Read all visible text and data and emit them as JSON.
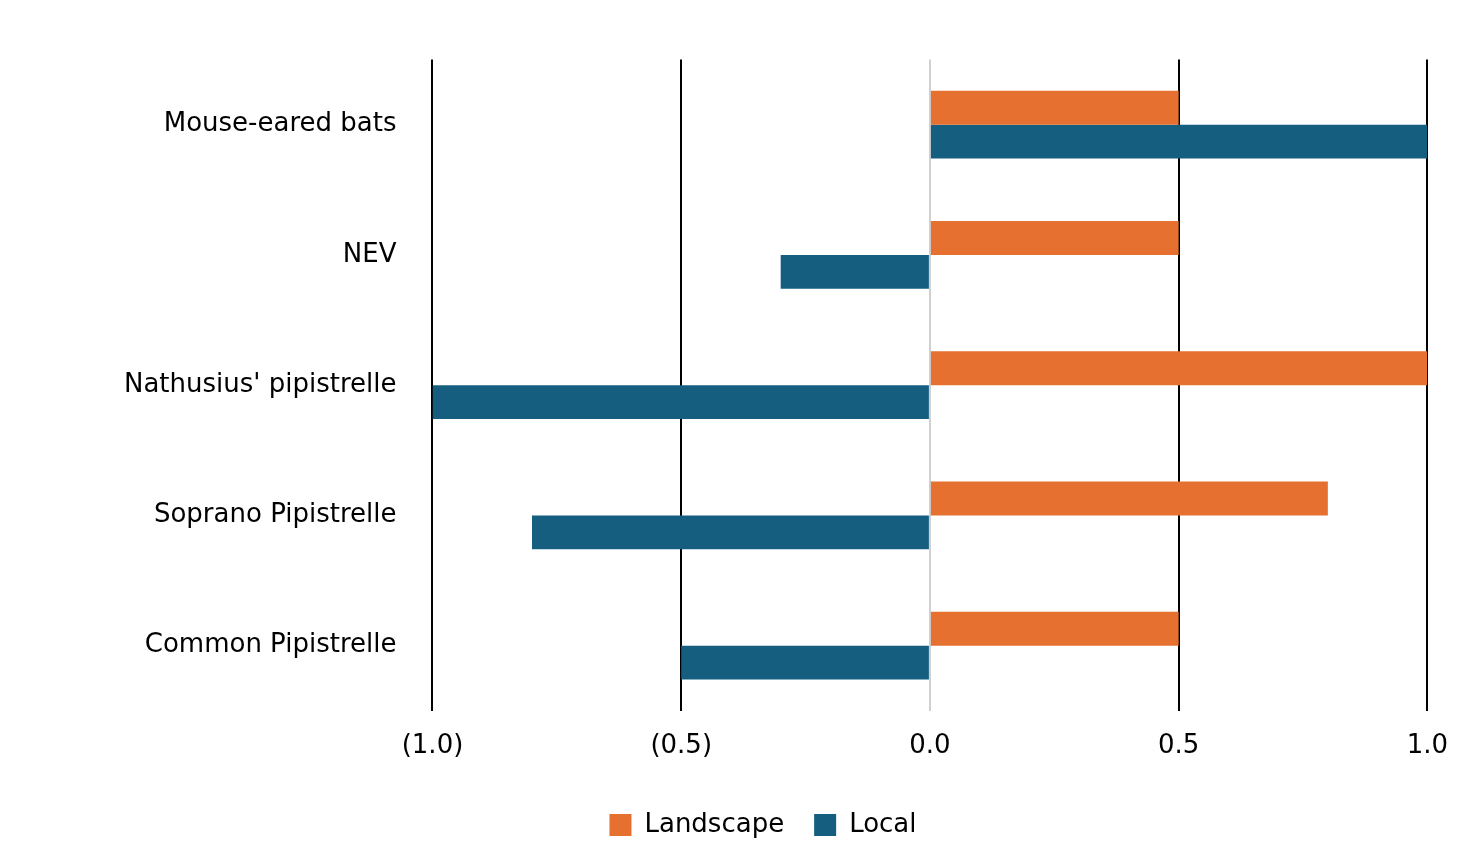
{
  "chart_data": {
    "type": "bar",
    "orientation": "horizontal",
    "categories": [
      "Mouse-eared bats",
      "NEV",
      "Nathusius' pipistrelle",
      "Soprano Pipistrelle",
      "Common Pipistrelle"
    ],
    "series": [
      {
        "name": "Landscape",
        "color": "#e5702f",
        "values": [
          0.5,
          0.5,
          1.0,
          0.8,
          0.5
        ]
      },
      {
        "name": "Local",
        "color": "#155e80",
        "values": [
          1.0,
          -0.3,
          -1.0,
          -0.8,
          -0.5
        ]
      }
    ],
    "xlim": [
      -1.0,
      1.0
    ],
    "xticks": [
      {
        "value": -1.0,
        "label": "(1.0)"
      },
      {
        "value": -0.5,
        "label": "(0.5)"
      },
      {
        "value": 0,
        "label": "0.0"
      },
      {
        "value": 0.5,
        "label": "0.5"
      },
      {
        "value": 1.0,
        "label": "1.0"
      }
    ],
    "grid": "x",
    "legend": "bottom"
  }
}
